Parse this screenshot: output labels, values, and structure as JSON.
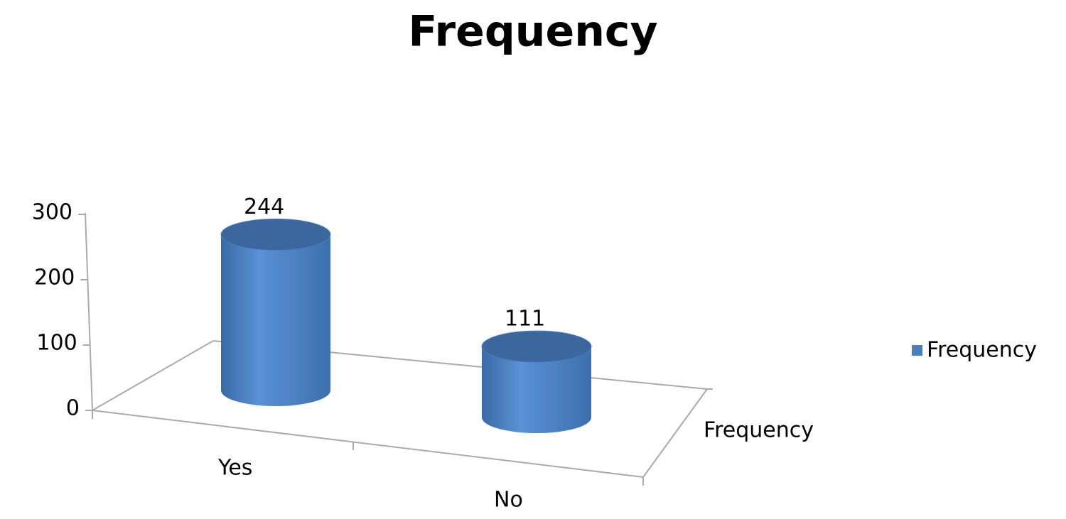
{
  "chart_data": {
    "type": "bar3d",
    "title": "Frequency",
    "categories": [
      "Yes",
      "No"
    ],
    "series": [
      {
        "name": "Frequency",
        "color": "#4a7ebb",
        "values": [
          244,
          111
        ]
      }
    ],
    "depth_label": "Frequency",
    "ylim": [
      0,
      300
    ],
    "yticks": [
      0,
      100,
      200,
      300
    ],
    "legend": "right"
  }
}
